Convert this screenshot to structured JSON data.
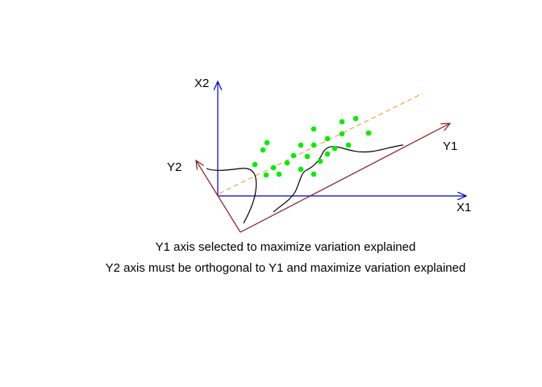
{
  "labels": {
    "x1": "X1",
    "x2": "X2",
    "y1": "Y1",
    "y2": "Y2"
  },
  "captions": {
    "line1": "Y1 axis selected to maximize variation explained",
    "line2": "Y2 axis must be orthogonal to Y1 and maximize variation explained"
  },
  "colors": {
    "original_axes": "#0000cc",
    "rotated_axes": "#8b1a1a",
    "trend_line": "#f0a030",
    "points": "#00ee00",
    "density_curves": "#000000"
  }
}
